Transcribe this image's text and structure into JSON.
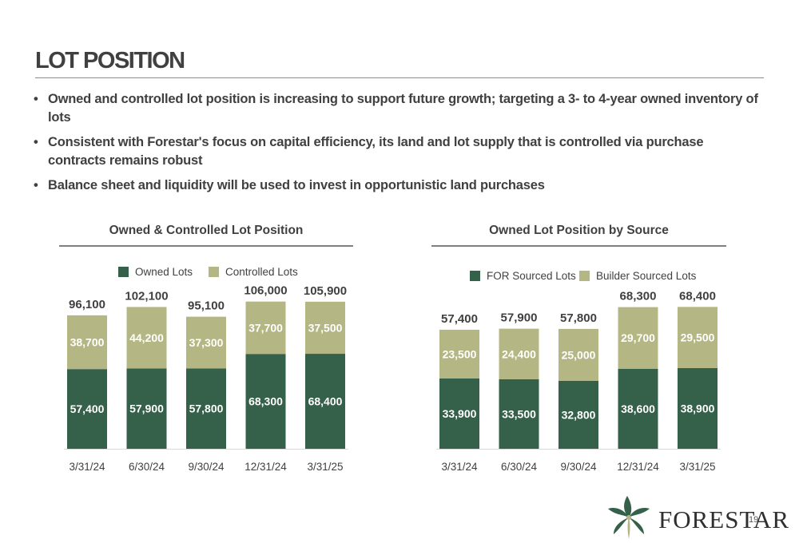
{
  "page": {
    "title": "LOT POSITION",
    "bullets": [
      "Owned and controlled lot position is increasing to support future growth; targeting a 3- to 4-year owned inventory of lots",
      "Consistent with Forestar's focus on capital efficiency, its land and lot supply that is controlled via purchase contracts remains robust",
      "Balance sheet and liquidity will be used to invest in opportunistic land purchases"
    ],
    "logo_text": "FORESTAR",
    "page_number": "19"
  },
  "colors": {
    "dark_green": "#35604a",
    "light_green": "#b4b783"
  },
  "chart_data": [
    {
      "type": "bar",
      "stacked": true,
      "title": "Owned & Controlled Lot Position",
      "categories": [
        "3/31/24",
        "6/30/24",
        "9/30/24",
        "12/31/24",
        "3/31/25"
      ],
      "series": [
        {
          "name": "Owned Lots",
          "color": "#35604a",
          "values": [
            57400,
            57900,
            57800,
            68300,
            68400
          ],
          "labels": [
            "57,400",
            "57,900",
            "57,800",
            "68,300",
            "68,400"
          ]
        },
        {
          "name": "Controlled Lots",
          "color": "#b4b783",
          "values": [
            38700,
            44200,
            37300,
            37700,
            37500
          ],
          "labels": [
            "38,700",
            "44,200",
            "37,300",
            "37,700",
            "37,500"
          ]
        }
      ],
      "totals": [
        "96,100",
        "102,100",
        "95,100",
        "106,000",
        "105,900"
      ],
      "ylim": [
        0,
        115000
      ],
      "legend": "top-center",
      "grid": false
    },
    {
      "type": "bar",
      "stacked": true,
      "title": "Owned Lot Position by Source",
      "categories": [
        "3/31/24",
        "6/30/24",
        "9/30/24",
        "12/31/24",
        "3/31/25"
      ],
      "series": [
        {
          "name": "FOR Sourced Lots",
          "color": "#35604a",
          "values": [
            33900,
            33500,
            32800,
            38600,
            38900
          ],
          "labels": [
            "33,900",
            "33,500",
            "32,800",
            "38,600",
            "38,900"
          ]
        },
        {
          "name": "Builder Sourced Lots",
          "color": "#b4b783",
          "values": [
            23500,
            24400,
            25000,
            29700,
            29500
          ],
          "labels": [
            "23,500",
            "24,400",
            "25,000",
            "29,700",
            "29,500"
          ]
        }
      ],
      "totals": [
        "57,400",
        "57,900",
        "57,800",
        "68,300",
        "68,400"
      ],
      "ylim": [
        0,
        77000
      ],
      "legend": "top-center",
      "grid": false
    }
  ]
}
